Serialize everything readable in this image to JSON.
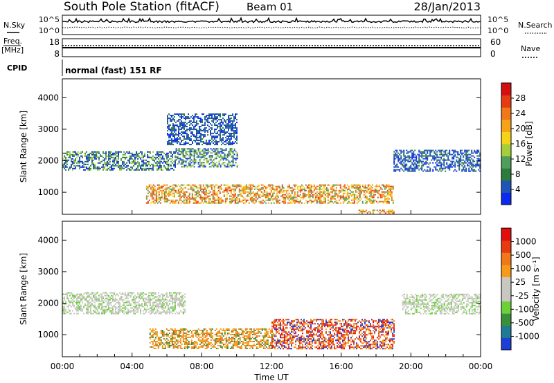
{
  "header": {
    "station": "South Pole Station (fitACF)",
    "beam": "Beam 01",
    "date": "28/Jan/2013"
  },
  "strip_panels": {
    "nsky_label": "N.Sky",
    "nsky_ticks": [
      "10^5",
      "10^0"
    ],
    "nsearch_label": "N.Search",
    "nsearch_ticks": [
      "10^5",
      "10^0"
    ],
    "freq_label_1": "Freq.",
    "freq_label_2": "[MHz]",
    "freq_ticks": [
      "18",
      "8"
    ],
    "nave_label": "Nave",
    "nave_ticks": [
      "60",
      "0"
    ],
    "cpid_label": "CPID",
    "cpid_text": "normal (fast) 151 RF"
  },
  "chart_data": [
    {
      "type": "heatmap",
      "name": "power",
      "ylabel": "Slant Range [km]",
      "yticks": [
        "1000",
        "2000",
        "3000",
        "4000"
      ],
      "ylim": [
        300,
        4600
      ],
      "colorbar": {
        "label": "Power [dB]",
        "ticks": [
          "4",
          "8",
          "12",
          "16",
          "20",
          "24",
          "28"
        ],
        "range": [
          0,
          32
        ],
        "colors": [
          "#0a2af0",
          "#1f55b4",
          "#2e7a3c",
          "#4f9f5a",
          "#a6ce3a",
          "#f7d21a",
          "#f6a21a",
          "#f07818",
          "#e53b12",
          "#d40f0f"
        ]
      },
      "bands": [
        {
          "t_start": 0.0,
          "t_end": 6.5,
          "range_low": 1700,
          "range_high": 2300,
          "level": "mid"
        },
        {
          "t_start": 6.5,
          "t_end": 10.0,
          "range_low": 1800,
          "range_high": 2400,
          "level": "mid"
        },
        {
          "t_start": 4.8,
          "t_end": 19.0,
          "range_low": 650,
          "range_high": 1250,
          "level": "high"
        },
        {
          "t_start": 17.0,
          "t_end": 19.0,
          "range_low": 330,
          "range_high": 450,
          "level": "high"
        },
        {
          "t_start": 19.0,
          "t_end": 24.0,
          "range_low": 1650,
          "range_high": 2350,
          "level": "low"
        },
        {
          "t_start": 6.0,
          "t_end": 10.0,
          "range_low": 2500,
          "range_high": 3500,
          "level": "low"
        }
      ]
    },
    {
      "type": "heatmap",
      "name": "velocity",
      "ylabel": "Slant Range [km]",
      "yticks": [
        "1000",
        "2000",
        "3000",
        "4000"
      ],
      "ylim": [
        300,
        4600
      ],
      "colorbar": {
        "label": "Velocity [m s⁻¹]",
        "ticks": [
          "1000",
          "500",
          "100",
          "25",
          "-25",
          "-100",
          "-500",
          "-1000"
        ],
        "colors": [
          "#1d3fd6",
          "#1f7a96",
          "#3a8f3a",
          "#6bd13a",
          "#c8c8c0",
          "#c8c8c0",
          "#f79a1a",
          "#f07818",
          "#e83a10",
          "#e20d0d"
        ]
      },
      "bands": [
        {
          "t_start": 0.0,
          "t_end": 7.0,
          "range_low": 1650,
          "range_high": 2350,
          "level": "gray"
        },
        {
          "t_start": 19.5,
          "t_end": 24.0,
          "range_low": 1650,
          "range_high": 2300,
          "level": "gray"
        },
        {
          "t_start": 5.0,
          "t_end": 12.0,
          "range_low": 550,
          "range_high": 1200,
          "level": "orange"
        },
        {
          "t_start": 12.0,
          "t_end": 19.0,
          "range_low": 550,
          "range_high": 1500,
          "level": "red"
        }
      ]
    }
  ],
  "x_axis": {
    "label": "Time UT",
    "ticks": [
      "00:00",
      "04:00",
      "08:00",
      "12:00",
      "16:00",
      "20:00",
      "00:00"
    ],
    "range_hours": [
      0,
      24
    ]
  }
}
